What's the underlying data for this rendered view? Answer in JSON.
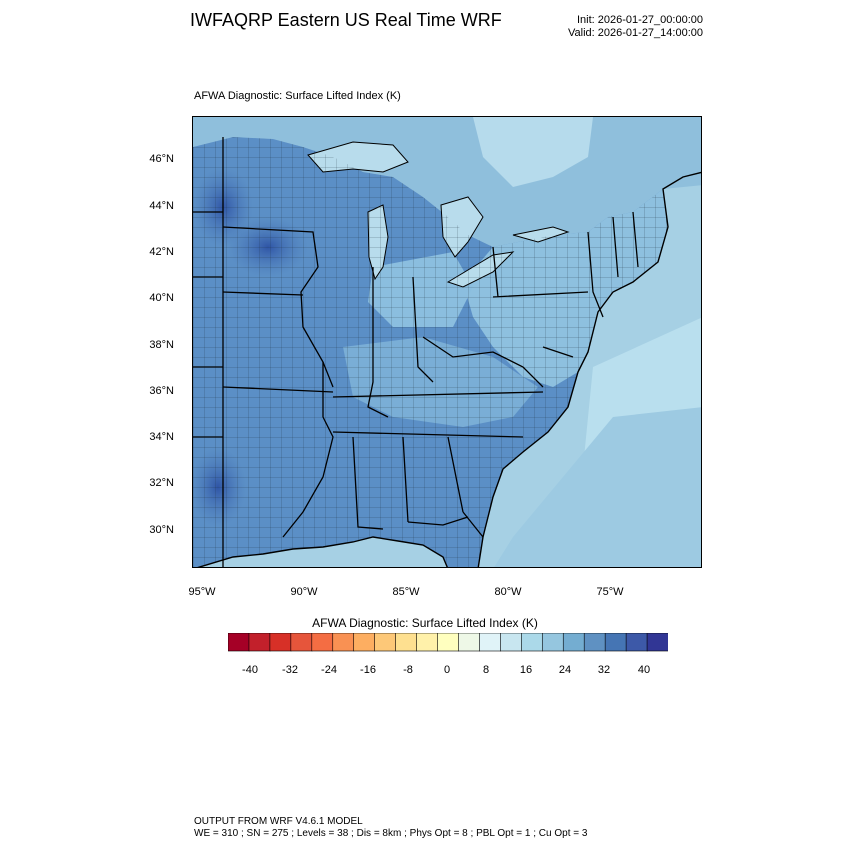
{
  "header": {
    "title": "IWFAQRP Eastern US Real Time WRF",
    "init": "Init: 2026-01-27_00:00:00",
    "valid": "Valid: 2026-01-27_14:00:00"
  },
  "plot": {
    "label": "AFWA Diagnostic: Surface Lifted Index   (K)",
    "lat_ticks": [
      "46°N",
      "44°N",
      "42°N",
      "40°N",
      "38°N",
      "36°N",
      "34°N",
      "32°N",
      "30°N"
    ],
    "lon_ticks": [
      "95°W",
      "90°W",
      "85°W",
      "80°W",
      "75°W"
    ],
    "extent": {
      "lon_min": -95.5,
      "lon_max": -70.5,
      "lat_min": 28.5,
      "lat_max": 47.8
    }
  },
  "colorbar": {
    "title": "AFWA Diagnostic: Surface Lifted Index  (K)",
    "tick_labels": [
      "-40",
      "-32",
      "-24",
      "-16",
      "-8",
      "0",
      "8",
      "16",
      "24",
      "32",
      "40"
    ],
    "colors": [
      "#a50026",
      "#c2202b",
      "#d73027",
      "#e6553b",
      "#f46d43",
      "#f99153",
      "#fdae61",
      "#fdc878",
      "#fee090",
      "#fff1aa",
      "#ffffbf",
      "#eef8e7",
      "#e0f3f8",
      "#c8e6f0",
      "#abd9e9",
      "#95c6df",
      "#74add1",
      "#5f91c2",
      "#4575b4",
      "#3d59a8",
      "#313695"
    ]
  },
  "footer": {
    "line1": "OUTPUT FROM WRF V4.6.1 MODEL",
    "line2": "WE = 310 ; SN = 275 ; Levels = 38 ; Dis = 8km ; Phys Opt = 8 ; PBL Opt = 1 ; Cu Opt = 3"
  }
}
